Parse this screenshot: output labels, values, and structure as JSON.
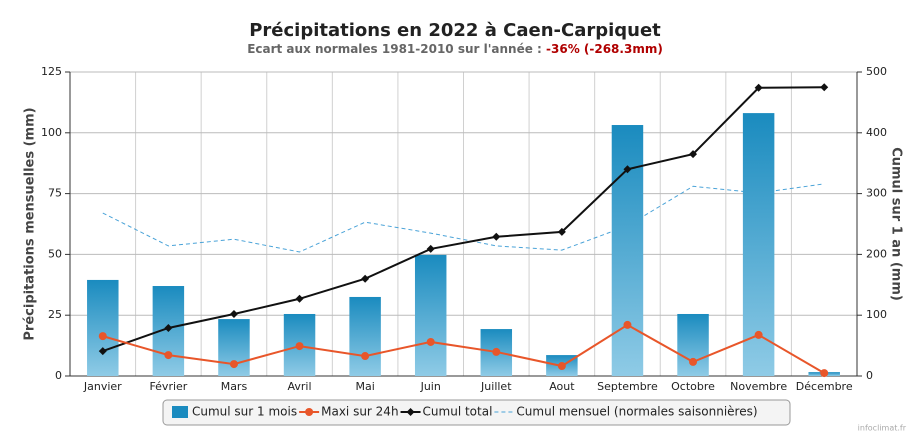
{
  "chart_data": {
    "type": "combo",
    "title": "Précipitations en 2022 à Caen-Carpiquet",
    "subtitle": "Ecart aux normales 1981-2010 sur l'année : ",
    "subtitle_highlight": "-36% (-268.3mm)",
    "y_label": "Précipitations mensuelles (mm)",
    "y2_label": "Cumul sur 1 an (mm)",
    "watermark": "infoclimat.fr",
    "categories": [
      "Janvier",
      "Février",
      "Mars",
      "Avril",
      "Mai",
      "Juin",
      "Juillet",
      "Aout",
      "Septembre",
      "Octobre",
      "Novembre",
      "Décembre"
    ],
    "series": [
      {
        "name": "Cumul sur 1 mois",
        "type": "bar",
        "color": "#1a8bbf",
        "axis": "y",
        "values": [
          39.5,
          37,
          23.4,
          25.5,
          32.5,
          49.8,
          19.3,
          8.6,
          103.2,
          25.5,
          108.1,
          1.6
        ]
      },
      {
        "name": "Maxi sur 24h",
        "type": "line",
        "color": "#e8562a",
        "axis": "y",
        "values": [
          16.4,
          8.6,
          4.9,
          12.3,
          8.2,
          14,
          9.9,
          4.1,
          21,
          5.8,
          16.9,
          1.2
        ]
      },
      {
        "name": "Cumul total",
        "type": "line",
        "color": "#111111",
        "axis": "y2",
        "values": [
          41,
          79,
          102,
          127,
          160,
          209,
          229,
          237,
          340,
          365,
          474,
          475
        ]
      },
      {
        "name": "Cumul mensuel (normales saisonnières)",
        "type": "dashed",
        "color": "#4aa3d8",
        "axis": "y2",
        "values": [
          268,
          214,
          225,
          204,
          253,
          235,
          214,
          207,
          247,
          312,
          301,
          316
        ]
      }
    ],
    "ylim": [
      0,
      125
    ],
    "yticks": [
      0,
      25,
      50,
      75,
      100,
      125
    ],
    "y2lim": [
      0,
      500
    ],
    "y2ticks": [
      0,
      100,
      200,
      300,
      400,
      500
    ],
    "grid": true
  }
}
